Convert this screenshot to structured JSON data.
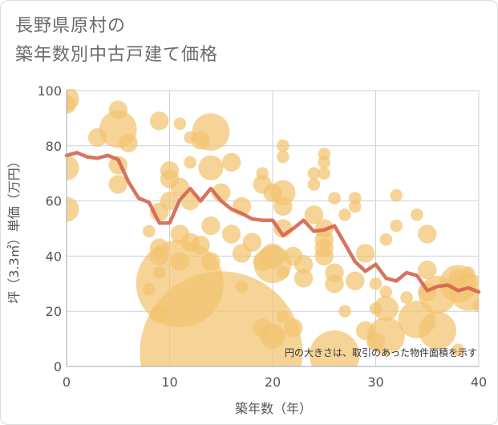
{
  "title": {
    "line1": "長野県原村の",
    "line2": "築年数別中古戸建て価格"
  },
  "colors": {
    "bubble": "#f2c46f",
    "line": "#d4644e",
    "grid": "#c7d3dd",
    "axis": "#9aa8b4"
  },
  "chart_data": {
    "type": "scatter",
    "xlabel": "築年数（年）",
    "ylabel": "坪（3.3㎡）単価（万円）",
    "xlim": [
      0,
      40
    ],
    "ylim": [
      0,
      100
    ],
    "xticks": [
      "0",
      "10",
      "20",
      "30",
      "40"
    ],
    "yticks": [
      "0",
      "20",
      "40",
      "60",
      "80",
      "100"
    ],
    "grid": true,
    "note": "円の大きさは、取引のあった物件面積を示す",
    "bubbles": [
      {
        "x": 0,
        "y": 97,
        "r": 4
      },
      {
        "x": 0,
        "y": 95,
        "r": 3
      },
      {
        "x": 0,
        "y": 72,
        "r": 4
      },
      {
        "x": 0,
        "y": 57,
        "r": 4
      },
      {
        "x": 3,
        "y": 83,
        "r": 3
      },
      {
        "x": 5,
        "y": 93,
        "r": 3
      },
      {
        "x": 5,
        "y": 86,
        "r": 6
      },
      {
        "x": 5,
        "y": 73,
        "r": 3
      },
      {
        "x": 6,
        "y": 81,
        "r": 3
      },
      {
        "x": 5,
        "y": 66,
        "r": 3
      },
      {
        "x": 9,
        "y": 89,
        "r": 3
      },
      {
        "x": 10,
        "y": 71,
        "r": 3
      },
      {
        "x": 10,
        "y": 68,
        "r": 3
      },
      {
        "x": 10,
        "y": 60,
        "r": 3
      },
      {
        "x": 9,
        "y": 56,
        "r": 3
      },
      {
        "x": 8,
        "y": 49,
        "r": 2
      },
      {
        "x": 9,
        "y": 43,
        "r": 3
      },
      {
        "x": 9,
        "y": 40,
        "r": 3
      },
      {
        "x": 9,
        "y": 34,
        "r": 2
      },
      {
        "x": 8,
        "y": 28,
        "r": 2
      },
      {
        "x": 9,
        "y": 19,
        "r": 3
      },
      {
        "x": 11,
        "y": 88,
        "r": 2
      },
      {
        "x": 12,
        "y": 83,
        "r": 2
      },
      {
        "x": 13,
        "y": 82,
        "r": 3
      },
      {
        "x": 14,
        "y": 85,
        "r": 6
      },
      {
        "x": 12,
        "y": 74,
        "r": 2
      },
      {
        "x": 14,
        "y": 72,
        "r": 4
      },
      {
        "x": 11,
        "y": 65,
        "r": 3
      },
      {
        "x": 12,
        "y": 60,
        "r": 3
      },
      {
        "x": 15,
        "y": 63,
        "r": 3
      },
      {
        "x": 11,
        "y": 48,
        "r": 3
      },
      {
        "x": 12,
        "y": 45,
        "r": 3
      },
      {
        "x": 13,
        "y": 44,
        "r": 3
      },
      {
        "x": 14,
        "y": 51,
        "r": 3
      },
      {
        "x": 14,
        "y": 38,
        "r": 3
      },
      {
        "x": 11,
        "y": 38,
        "r": 3
      },
      {
        "x": 11,
        "y": 30,
        "r": 14
      },
      {
        "x": 15,
        "y": 5,
        "r": 26
      },
      {
        "x": 16,
        "y": 74,
        "r": 3
      },
      {
        "x": 16,
        "y": 48,
        "r": 3
      },
      {
        "x": 17,
        "y": 58,
        "r": 3
      },
      {
        "x": 17,
        "y": 41,
        "r": 3
      },
      {
        "x": 18,
        "y": 45,
        "r": 3
      },
      {
        "x": 17,
        "y": 29,
        "r": 2
      },
      {
        "x": 19,
        "y": 70,
        "r": 2
      },
      {
        "x": 19,
        "y": 66,
        "r": 3
      },
      {
        "x": 20,
        "y": 63,
        "r": 3
      },
      {
        "x": 19,
        "y": 38,
        "r": 3
      },
      {
        "x": 20,
        "y": 40,
        "r": 4
      },
      {
        "x": 20,
        "y": 37,
        "r": 6
      },
      {
        "x": 21,
        "y": 80,
        "r": 2
      },
      {
        "x": 21,
        "y": 76,
        "r": 2
      },
      {
        "x": 21,
        "y": 63,
        "r": 4
      },
      {
        "x": 21,
        "y": 58,
        "r": 3
      },
      {
        "x": 21,
        "y": 50,
        "r": 3
      },
      {
        "x": 21,
        "y": 34,
        "r": 2
      },
      {
        "x": 21,
        "y": 18,
        "r": 2
      },
      {
        "x": 19,
        "y": 14,
        "r": 3
      },
      {
        "x": 20,
        "y": 11,
        "r": 4
      },
      {
        "x": 22,
        "y": 14,
        "r": 3
      },
      {
        "x": 22,
        "y": 40,
        "r": 3
      },
      {
        "x": 23,
        "y": 37,
        "r": 3
      },
      {
        "x": 23,
        "y": 32,
        "r": 3
      },
      {
        "x": 24,
        "y": 70,
        "r": 2
      },
      {
        "x": 24,
        "y": 66,
        "r": 2
      },
      {
        "x": 24,
        "y": 55,
        "r": 3
      },
      {
        "x": 25,
        "y": 77,
        "r": 2
      },
      {
        "x": 25,
        "y": 74,
        "r": 2
      },
      {
        "x": 25,
        "y": 70,
        "r": 2
      },
      {
        "x": 25,
        "y": 50,
        "r": 3
      },
      {
        "x": 25,
        "y": 46,
        "r": 3
      },
      {
        "x": 25,
        "y": 43,
        "r": 3
      },
      {
        "x": 25,
        "y": 40,
        "r": 3
      },
      {
        "x": 26,
        "y": 61,
        "r": 2
      },
      {
        "x": 26,
        "y": 34,
        "r": 3
      },
      {
        "x": 26,
        "y": 30,
        "r": 3
      },
      {
        "x": 26,
        "y": 4,
        "r": 8
      },
      {
        "x": 27,
        "y": 55,
        "r": 2
      },
      {
        "x": 27,
        "y": 20,
        "r": 2
      },
      {
        "x": 28,
        "y": 61,
        "r": 2
      },
      {
        "x": 28,
        "y": 58,
        "r": 2
      },
      {
        "x": 28,
        "y": 31,
        "r": 3
      },
      {
        "x": 29,
        "y": 41,
        "r": 3
      },
      {
        "x": 29,
        "y": 13,
        "r": 3
      },
      {
        "x": 30,
        "y": 30,
        "r": 2
      },
      {
        "x": 30,
        "y": 9,
        "r": 3
      },
      {
        "x": 30,
        "y": 21,
        "r": 2
      },
      {
        "x": 31,
        "y": 46,
        "r": 2
      },
      {
        "x": 31,
        "y": 27,
        "r": 2
      },
      {
        "x": 31,
        "y": 21,
        "r": 4
      },
      {
        "x": 31,
        "y": 11,
        "r": 6
      },
      {
        "x": 32,
        "y": 62,
        "r": 2
      },
      {
        "x": 32,
        "y": 51,
        "r": 2
      },
      {
        "x": 33,
        "y": 25,
        "r": 2
      },
      {
        "x": 34,
        "y": 55,
        "r": 2
      },
      {
        "x": 34,
        "y": 17,
        "r": 6
      },
      {
        "x": 35,
        "y": 48,
        "r": 3
      },
      {
        "x": 35,
        "y": 35,
        "r": 3
      },
      {
        "x": 35,
        "y": 27,
        "r": 3
      },
      {
        "x": 36,
        "y": 26,
        "r": 6
      },
      {
        "x": 36,
        "y": 13,
        "r": 6
      },
      {
        "x": 38,
        "y": 32,
        "r": 3
      },
      {
        "x": 38,
        "y": 30,
        "r": 6
      },
      {
        "x": 38,
        "y": 6,
        "r": 2
      },
      {
        "x": 39,
        "y": 27,
        "r": 6
      },
      {
        "x": 39,
        "y": 34,
        "r": 2
      },
      {
        "x": 40,
        "y": 22,
        "r": 2
      }
    ],
    "series": [
      {
        "x": [
          0,
          1,
          2,
          3,
          4,
          5,
          6,
          7,
          8,
          9,
          10,
          11,
          12,
          13,
          14,
          15,
          16,
          17,
          18,
          19,
          20,
          21,
          22,
          23,
          24,
          25,
          26,
          27,
          28,
          29,
          30,
          31,
          32,
          33,
          34,
          35,
          36,
          37,
          38,
          39,
          40
        ],
        "y": [
          76.5,
          77.5,
          76,
          75.5,
          76.5,
          75,
          67,
          61,
          59.5,
          52,
          52,
          60.5,
          64.5,
          60,
          64.5,
          60,
          57,
          55.5,
          53.5,
          53,
          53,
          47.5,
          50,
          53,
          49,
          49.5,
          51,
          44.5,
          38,
          34.5,
          37,
          32,
          31,
          34,
          33,
          27.5,
          29,
          29.5,
          27.5,
          28.5,
          27
        ]
      }
    ]
  }
}
